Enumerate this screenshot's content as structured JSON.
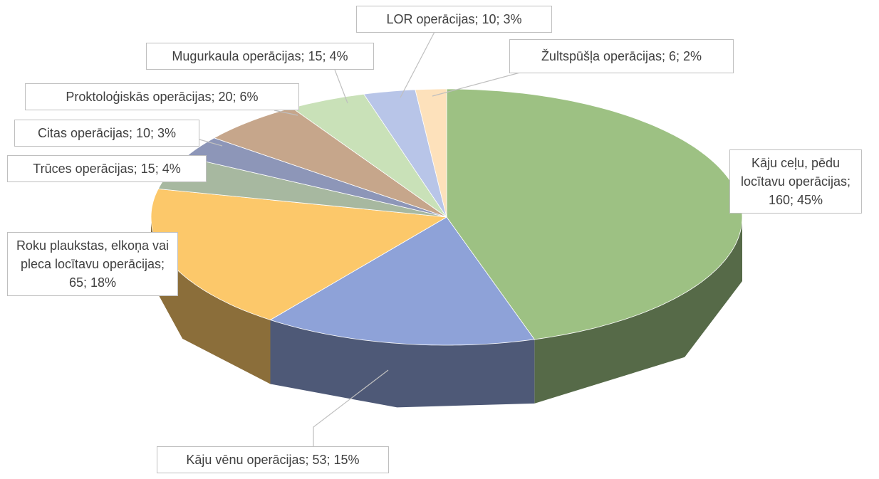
{
  "chart_data": {
    "type": "pie3d",
    "values": [
      160,
      53,
      65,
      15,
      10,
      20,
      15,
      10,
      6
    ],
    "value_labels": [
      "Kāju ceļu, pēdu locītavu operācijas; 160; 45%",
      "Kāju vēnu operācijas; 53; 15%",
      "Roku plaukstas, elkoņa vai pleca locītavu operācijas; 65; 18%",
      "Trūces operācijas; 15; 4%",
      "Citas operācijas; 10; 3%",
      "Proktoloģiskās operācijas; 20; 6%",
      "Mugurkaula operācijas; 15; 4%",
      "LOR operācijas; 10; 3%",
      "Žultspūšļa operācijas; 6; 2%"
    ],
    "colors": [
      "#9dc183",
      "#8ea2d8",
      "#fcc86a",
      "#a7b8a0",
      "#8d96b8",
      "#c6a68b",
      "#c9e1b8",
      "#b8c5e8",
      "#fde1bb"
    ]
  }
}
